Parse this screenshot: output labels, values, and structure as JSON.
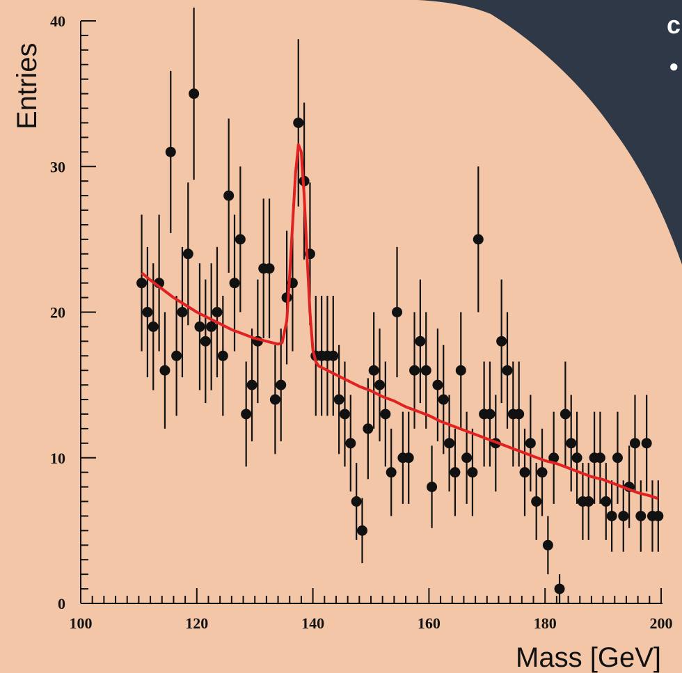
{
  "slide": {
    "corner_text": "c",
    "corner_bullet": "•",
    "colors": {
      "background": "#f2c6a6",
      "corner": "#2e3846",
      "fit": "#e02222",
      "points": "#111111"
    }
  },
  "chart_data": {
    "type": "scatter",
    "title": "",
    "xlabel": "Mass [GeV]",
    "ylabel": "Entries",
    "xlim": [
      100,
      200
    ],
    "ylim": [
      0,
      40
    ],
    "x_ticks": [
      100,
      120,
      140,
      160,
      180,
      200
    ],
    "y_ticks": [
      0,
      10,
      20,
      30,
      40
    ],
    "x_tick_labels": [
      "100",
      "120",
      "140",
      "160",
      "180",
      "200"
    ],
    "y_tick_labels": [
      "0",
      "10",
      "20",
      "30",
      "40"
    ],
    "grid": false,
    "series": [
      {
        "type": "scatter_with_error_bars",
        "x": [
          110.5,
          111.5,
          112.5,
          113.5,
          114.5,
          115.5,
          116.5,
          117.5,
          118.5,
          119.5,
          120.5,
          121.5,
          122.5,
          123.5,
          124.5,
          125.5,
          126.5,
          127.5,
          128.5,
          129.5,
          130.5,
          131.5,
          132.5,
          133.5,
          134.5,
          135.5,
          136.5,
          137.5,
          138.5,
          139.5,
          140.5,
          141.5,
          142.5,
          143.5,
          144.5,
          145.5,
          146.5,
          147.5,
          148.5,
          149.5,
          150.5,
          151.5,
          152.5,
          153.5,
          154.5,
          155.5,
          156.5,
          157.5,
          158.5,
          159.5,
          160.5,
          161.5,
          162.5,
          163.5,
          164.5,
          165.5,
          166.5,
          167.5,
          168.5,
          169.5,
          170.5,
          171.5,
          172.5,
          173.5,
          174.5,
          175.5,
          176.5,
          177.5,
          178.5,
          179.5,
          180.5,
          181.5,
          182.5,
          183.5,
          184.5,
          185.5,
          186.5,
          187.5,
          188.5,
          189.5,
          190.5,
          191.5,
          192.5,
          193.5,
          194.5,
          195.5,
          196.5,
          197.5,
          198.5,
          199.5
        ],
        "y": [
          22,
          20,
          19,
          22,
          16,
          31,
          17,
          20,
          24,
          35,
          19,
          18,
          19,
          20,
          17,
          28,
          22,
          25,
          13,
          15,
          18,
          23,
          23,
          14,
          15,
          21,
          22,
          33,
          29,
          24,
          17,
          17,
          17,
          17,
          14,
          13,
          11,
          7,
          5,
          12,
          16,
          15,
          13,
          9,
          20,
          10,
          10,
          16,
          18,
          16,
          8,
          15,
          14,
          11,
          9,
          16,
          10,
          9,
          25,
          13,
          13,
          11,
          18,
          16,
          13,
          13,
          9,
          11,
          7,
          9,
          4,
          10,
          1,
          13,
          11,
          10,
          7,
          7,
          10,
          10,
          7,
          6,
          10,
          6,
          8,
          11,
          6,
          11,
          6,
          6
        ]
      },
      {
        "type": "line",
        "x": [
          110.5,
          112,
          114,
          116,
          118,
          120,
          122,
          124,
          126,
          128,
          130,
          132,
          134,
          134.7,
          135.5,
          136,
          136.5,
          137,
          137.5,
          138,
          138.5,
          139,
          139.5,
          140,
          140.5,
          141,
          141.5,
          142,
          144,
          146,
          148,
          150,
          152,
          154,
          156,
          158,
          160,
          162,
          164,
          166,
          168,
          170,
          172,
          174,
          176,
          178,
          180,
          182,
          184,
          186,
          188,
          190,
          192,
          194,
          196,
          198,
          199.5
        ],
        "y": [
          22.7,
          22.2,
          21.6,
          21.0,
          20.5,
          20.0,
          19.6,
          19.2,
          18.8,
          18.5,
          18.2,
          18.0,
          17.8,
          17.9,
          19.4,
          22.5,
          26.0,
          29.5,
          31.5,
          31.0,
          28.0,
          23.8,
          20.0,
          17.4,
          16.6,
          16.3,
          16.2,
          16.1,
          15.7,
          15.3,
          14.9,
          14.6,
          14.2,
          13.9,
          13.5,
          13.2,
          12.9,
          12.5,
          12.2,
          11.9,
          11.6,
          11.3,
          11.0,
          10.7,
          10.4,
          10.1,
          9.8,
          9.6,
          9.3,
          9.0,
          8.7,
          8.5,
          8.2,
          7.9,
          7.6,
          7.4,
          7.2
        ]
      }
    ]
  }
}
